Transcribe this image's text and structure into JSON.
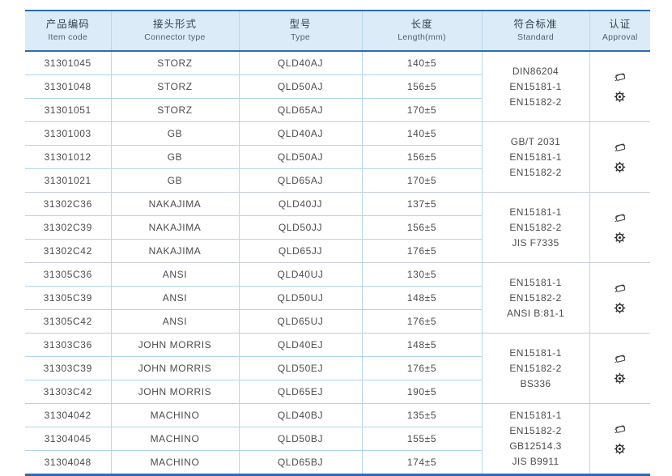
{
  "table": {
    "headers": [
      {
        "zh": "产品编码",
        "en": "Item code"
      },
      {
        "zh": "接头形式",
        "en": "Connector type"
      },
      {
        "zh": "型号",
        "en": "Type"
      },
      {
        "zh": "长度",
        "en": "Length(mm)"
      },
      {
        "zh": "符合标准",
        "en": "Standard"
      },
      {
        "zh": "认证",
        "en": "Approval"
      }
    ],
    "groups": [
      {
        "rows": [
          {
            "item_code": "31301045",
            "connector": "STORZ",
            "type": "QLD40AJ",
            "length": "140±5"
          },
          {
            "item_code": "31301048",
            "connector": "STORZ",
            "type": "QLD50AJ",
            "length": "156±5"
          },
          {
            "item_code": "31301051",
            "connector": "STORZ",
            "type": "QLD65AJ",
            "length": "170±5"
          }
        ],
        "standards": [
          "DIN86204",
          "EN15181-1",
          "EN15182-2"
        ],
        "approval_icons": [
          "certificate-stamp-icon",
          "gear-seal-icon"
        ]
      },
      {
        "rows": [
          {
            "item_code": "31301003",
            "connector": "GB",
            "type": "QLD40AJ",
            "length": "140±5"
          },
          {
            "item_code": "31301012",
            "connector": "GB",
            "type": "QLD50AJ",
            "length": "156±5"
          },
          {
            "item_code": "31301021",
            "connector": "GB",
            "type": "QLD65AJ",
            "length": "170±5"
          }
        ],
        "standards": [
          "GB/T 2031",
          "EN15181-1",
          "EN15182-2"
        ],
        "approval_icons": [
          "certificate-stamp-icon",
          "gear-seal-icon"
        ]
      },
      {
        "rows": [
          {
            "item_code": "31302C36",
            "connector": "NAKAJIMA",
            "type": "QLD40JJ",
            "length": "137±5"
          },
          {
            "item_code": "31302C39",
            "connector": "NAKAJIMA",
            "type": "QLD50JJ",
            "length": "156±5"
          },
          {
            "item_code": "31302C42",
            "connector": "NAKAJIMA",
            "type": "QLD65JJ",
            "length": "176±5"
          }
        ],
        "standards": [
          "EN15181-1",
          "EN15182-2",
          "JIS F7335"
        ],
        "approval_icons": [
          "certificate-stamp-icon",
          "gear-seal-icon"
        ]
      },
      {
        "rows": [
          {
            "item_code": "31305C36",
            "connector": "ANSI",
            "type": "QLD40UJ",
            "length": "130±5"
          },
          {
            "item_code": "31305C39",
            "connector": "ANSI",
            "type": "QLD50UJ",
            "length": "148±5"
          },
          {
            "item_code": "31305C42",
            "connector": "ANSI",
            "type": "QLD65UJ",
            "length": "176±5"
          }
        ],
        "standards": [
          "EN15181-1",
          "EN15182-2",
          "ANSI B:81-1"
        ],
        "approval_icons": [
          "certificate-stamp-icon",
          "gear-seal-icon"
        ]
      },
      {
        "rows": [
          {
            "item_code": "31303C36",
            "connector": "JOHN MORRIS",
            "type": "QLD40EJ",
            "length": "148±5"
          },
          {
            "item_code": "31303C39",
            "connector": "JOHN MORRIS",
            "type": "QLD50EJ",
            "length": "176±5"
          },
          {
            "item_code": "31303C42",
            "connector": "JOHN MORRIS",
            "type": "QLD65EJ",
            "length": "190±5"
          }
        ],
        "standards": [
          "EN15181-1",
          "EN15182-2",
          "BS336"
        ],
        "approval_icons": [
          "certificate-stamp-icon",
          "gear-seal-icon"
        ]
      },
      {
        "rows": [
          {
            "item_code": "31304042",
            "connector": "MACHINO",
            "type": "QLD40BJ",
            "length": "135±5"
          },
          {
            "item_code": "31304045",
            "connector": "MACHINO",
            "type": "QLD50BJ",
            "length": "155±5"
          },
          {
            "item_code": "31304048",
            "connector": "MACHINO",
            "type": "QLD65BJ",
            "length": "174±5"
          }
        ],
        "standards": [
          "EN15181-1",
          "EN15182-2",
          "GB12514.3",
          "JIS B9911"
        ],
        "approval_icons": [
          "certificate-stamp-icon",
          "gear-seal-icon"
        ]
      }
    ]
  },
  "colors": {
    "header_bg": "#dcebf8",
    "accent_line": "#2b6cb4",
    "row_line": "#aed6ec",
    "group_line": "#c6ccd3",
    "text": "#4c4c4c"
  }
}
